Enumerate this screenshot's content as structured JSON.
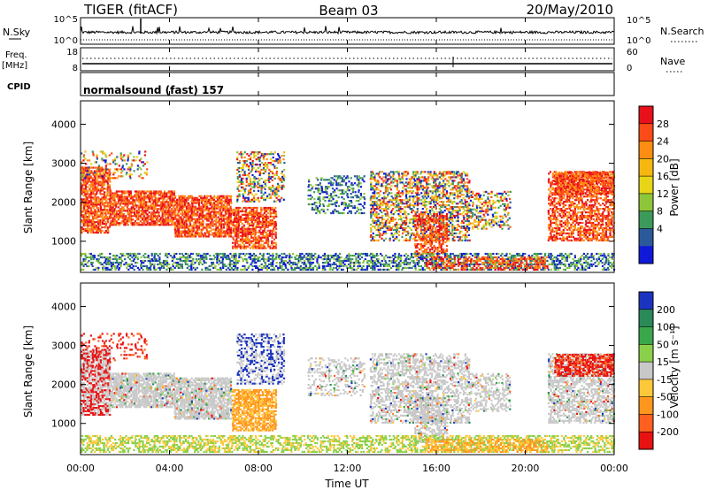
{
  "header": {
    "title": "TIGER (fitACF)",
    "beam": "Beam 03",
    "date": "20/May/2010"
  },
  "strip_panel": {
    "left_label": "N.Sky",
    "left_ticks": [
      "10^5",
      "10^0"
    ],
    "right_label": "N.Search",
    "right_ticks": [
      "10^5",
      "10^0"
    ]
  },
  "freq_panel": {
    "left_label_line1": "Freq.",
    "left_label_line2": "[MHz]",
    "left_ticks": [
      "18",
      "8"
    ],
    "right_label": "Nave",
    "right_ticks": [
      "60",
      "0"
    ]
  },
  "cpid_panel": {
    "label": "CPID",
    "text": "normalsound (fast) 157"
  },
  "chart_data": [
    {
      "type": "heatmap",
      "name": "power",
      "ylabel": "Slant Range [km]",
      "xlabel": "Time UT",
      "ylim": [
        200,
        4600
      ],
      "yticks": [
        "4000",
        "3000",
        "2000",
        "1000"
      ],
      "xticks": [
        "00:00",
        "04:00",
        "08:00",
        "12:00",
        "16:00",
        "20:00",
        "00:00"
      ],
      "colorbar_label": "Power [dB]",
      "colorbar_ticks": [
        "28",
        "24",
        "20",
        "16",
        "12",
        "8",
        "4"
      ],
      "colorbar_colors": [
        "#e8101a",
        "#fb4b16",
        "#ff8d12",
        "#f6b711",
        "#e8d518",
        "#8ec63a",
        "#3c9a5a",
        "#2a5a9a",
        "#1019d8"
      ]
    },
    {
      "type": "heatmap",
      "name": "velocity",
      "ylabel": "Slant Range [km]",
      "xlabel": "Time UT",
      "ylim": [
        200,
        4600
      ],
      "yticks": [
        "4000",
        "3000",
        "2000",
        "1000"
      ],
      "xticks": [
        "00:00",
        "04:00",
        "08:00",
        "12:00",
        "16:00",
        "20:00",
        "00:00"
      ],
      "colorbar_label": "Velocity [m s⁻¹]",
      "colorbar_ticks": [
        "200",
        "100",
        "50",
        "15",
        "-15",
        "-50",
        "-100",
        "-200"
      ],
      "colorbar_colors": [
        "#1b34c0",
        "#2a8a58",
        "#3aa84a",
        "#8ad04a",
        "#c8c8c8",
        "#ffc83a",
        "#ff961e",
        "#ff6020",
        "#e81212"
      ]
    }
  ],
  "xaxis": {
    "label": "Time UT",
    "ticks": [
      "00:00",
      "04:00",
      "08:00",
      "12:00",
      "16:00",
      "20:00",
      "00:00"
    ]
  }
}
